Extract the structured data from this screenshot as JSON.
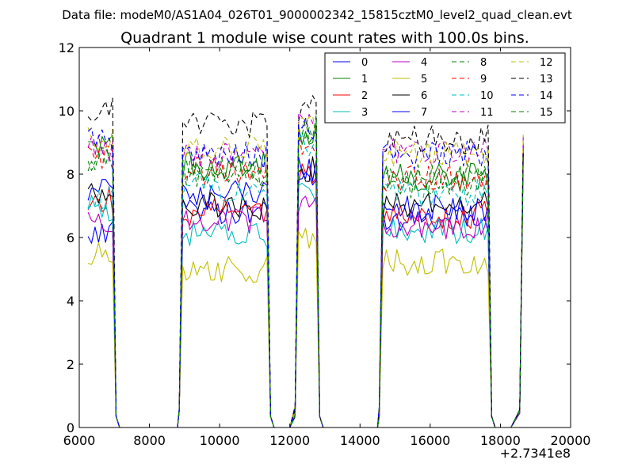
{
  "figure": {
    "suptitle": "Data file: modeM0/AS1A04_026T01_9000002342_15815cztM0_level2_quad_clean.evt"
  },
  "chart_data": {
    "type": "line",
    "title": "Quadrant 1 module wise count rates with 100.0s bins.",
    "xlabel": "",
    "ylabel": "",
    "x_offset_label": "+2.7341e8",
    "xlim": [
      6000,
      20000
    ],
    "ylim": [
      0,
      12
    ],
    "xticks": [
      6000,
      8000,
      10000,
      12000,
      14000,
      16000,
      18000,
      20000
    ],
    "xtick_labels": [
      "6000",
      "8000",
      "10000",
      "12000",
      "14000",
      "16000",
      "18000",
      "20000"
    ],
    "yticks": [
      0,
      2,
      4,
      6,
      8,
      10,
      12
    ],
    "ytick_labels": [
      "0",
      "2",
      "4",
      "6",
      "8",
      "10",
      "12"
    ],
    "grid": false,
    "legend_position": "top-right",
    "legend_columns": 4,
    "bin_seconds": 100.0,
    "segments": [
      {
        "t_start": 6250,
        "t_end": 6950,
        "down_to": 7150
      },
      {
        "t_start": 8950,
        "t_end": 11350,
        "down_to": 11550
      },
      {
        "t_start": 12250,
        "t_end": 12750,
        "down_to": 12950
      },
      {
        "t_start": 14650,
        "t_end": 17650,
        "down_to": 17850
      },
      {
        "t_start": 18650,
        "t_end": 18650,
        "down_to": 18650
      }
    ],
    "gap_times": [
      7250,
      7500,
      8000,
      8500,
      8800,
      11650,
      12000,
      13050,
      13500,
      14000,
      14500,
      17950,
      18300,
      18550
    ],
    "series": [
      {
        "name": "0",
        "color": "#0000ff",
        "dash": "solid",
        "levels": [
          6.15,
          6.8,
          8.1,
          6.6,
          8.6
        ]
      },
      {
        "name": "1",
        "color": "#008000",
        "dash": "solid",
        "levels": [
          8.8,
          8.25,
          9.3,
          7.9,
          8.6
        ]
      },
      {
        "name": "2",
        "color": "#ff0000",
        "dash": "solid",
        "levels": [
          7.2,
          6.8,
          7.9,
          6.7,
          8.6
        ]
      },
      {
        "name": "3",
        "color": "#00bfbf",
        "dash": "solid",
        "levels": [
          6.9,
          6.1,
          7.4,
          6.2,
          8.5
        ]
      },
      {
        "name": "4",
        "color": "#bf00bf",
        "dash": "solid",
        "levels": [
          6.45,
          6.55,
          7.0,
          6.4,
          8.5
        ]
      },
      {
        "name": "5",
        "color": "#bfbf00",
        "dash": "solid",
        "levels": [
          5.4,
          5.0,
          5.9,
          5.2,
          7.9
        ]
      },
      {
        "name": "6",
        "color": "#000000",
        "dash": "solid",
        "levels": [
          7.4,
          7.0,
          8.2,
          7.1,
          8.7
        ]
      },
      {
        "name": "7",
        "color": "#0000ff",
        "dash": "solid",
        "levels": [
          7.6,
          7.35,
          8.2,
          6.9,
          8.6
        ]
      },
      {
        "name": "8",
        "color": "#008000",
        "dash": "dashed",
        "levels": [
          8.5,
          8.0,
          9.4,
          7.7,
          8.7
        ]
      },
      {
        "name": "9",
        "color": "#ff0000",
        "dash": "dashed",
        "levels": [
          8.6,
          8.1,
          9.0,
          7.9,
          8.7
        ]
      },
      {
        "name": "10",
        "color": "#00bfbf",
        "dash": "dashed",
        "levels": [
          7.2,
          7.6,
          8.9,
          7.4,
          8.6
        ]
      },
      {
        "name": "11",
        "color": "#bf00bf",
        "dash": "dashed",
        "levels": [
          8.8,
          8.6,
          9.5,
          8.7,
          8.8
        ]
      },
      {
        "name": "12",
        "color": "#bfbf00",
        "dash": "dashed",
        "levels": [
          9.1,
          8.9,
          9.6,
          8.6,
          8.8
        ]
      },
      {
        "name": "13",
        "color": "#000000",
        "dash": "dashed",
        "levels": [
          10.0,
          9.55,
          10.1,
          9.1,
          9.2
        ]
      },
      {
        "name": "14",
        "color": "#0000ff",
        "dash": "dashed",
        "levels": [
          9.2,
          8.6,
          9.5,
          8.6,
          8.9
        ]
      },
      {
        "name": "15",
        "color": "#008000",
        "dash": "dashed",
        "levels": [
          8.5,
          8.1,
          9.4,
          7.9,
          8.9
        ]
      }
    ]
  }
}
